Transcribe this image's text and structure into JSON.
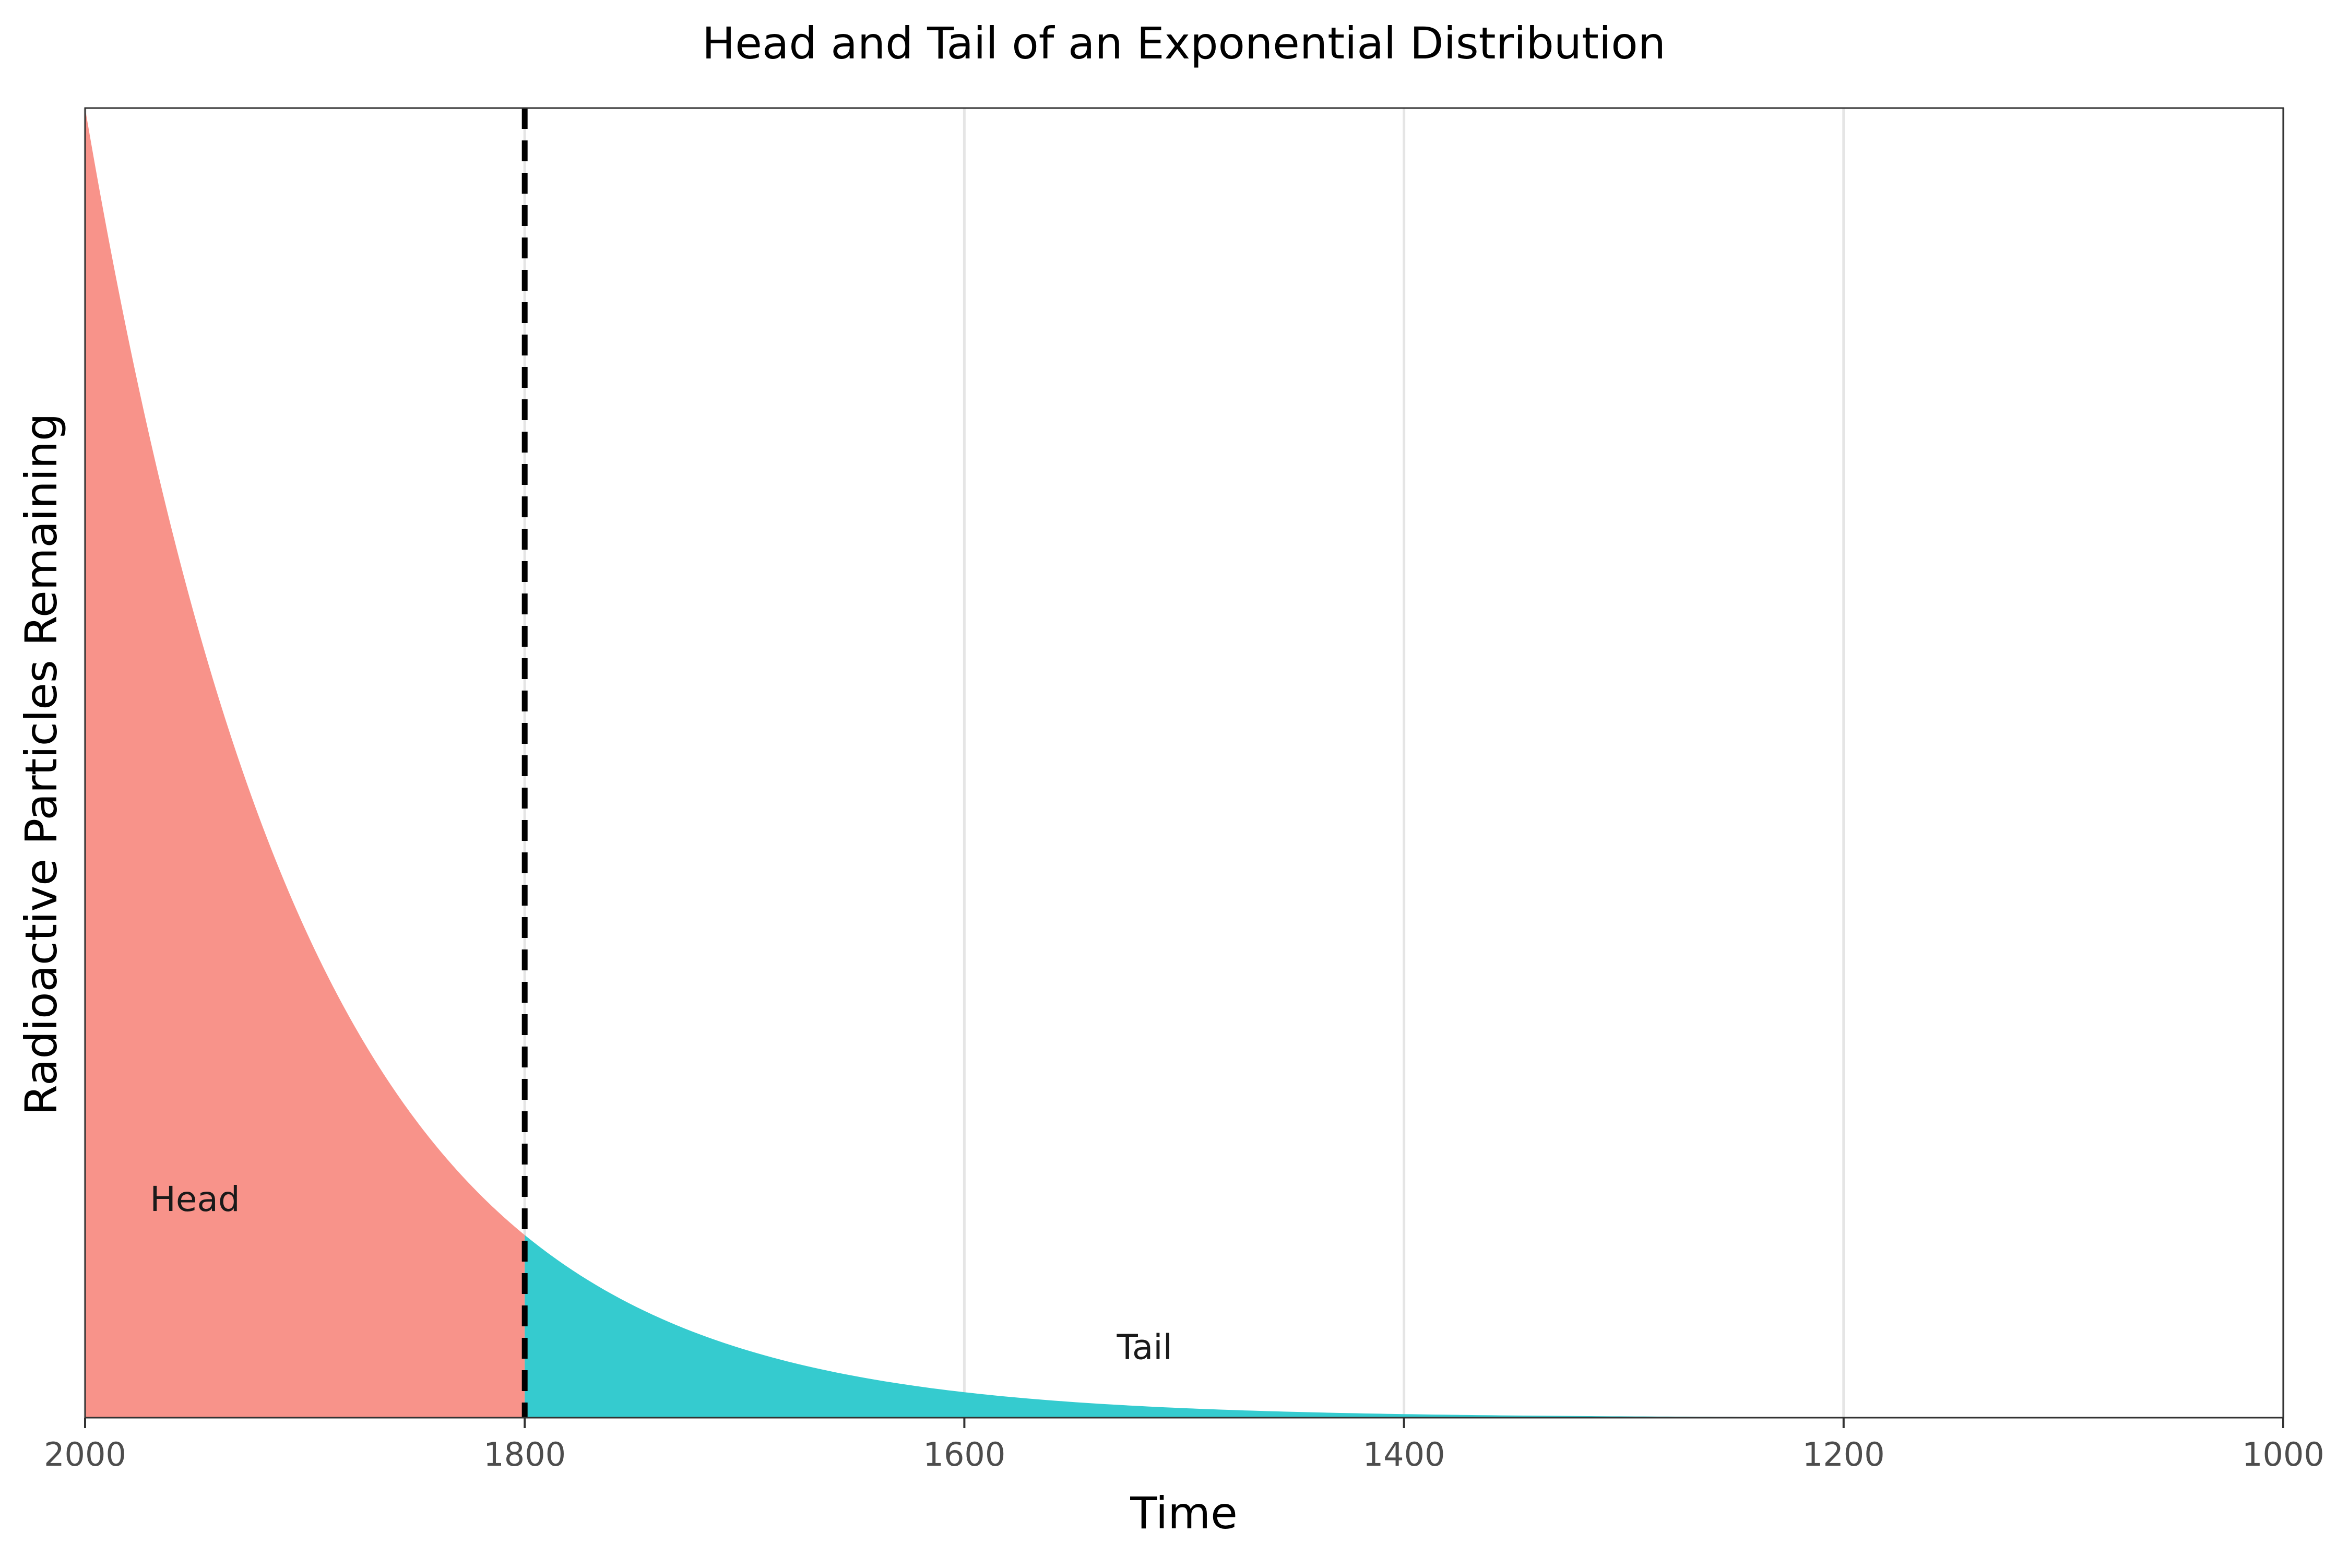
{
  "chart_data": {
    "type": "area",
    "title": "Head and Tail of an Exponential Distribution",
    "xlabel": "Time",
    "ylabel": "Radioactive Particles Remaining",
    "x_axis_reversed": true,
    "xlim": [
      2000,
      1000
    ],
    "x_ticks": [
      2000,
      1800,
      1600,
      1400,
      1200,
      1000
    ],
    "ylim": [
      0,
      1.0
    ],
    "y_ticks_shown": false,
    "grid": {
      "vertical_major": true,
      "horizontal": false
    },
    "curve": {
      "function": "exponential decay",
      "start": {
        "x": 2000,
        "y": 1.0
      },
      "rate_per_year": 0.00985,
      "x": [
        2000,
        1950,
        1900,
        1850,
        1800,
        1750,
        1700,
        1650,
        1600,
        1550,
        1500,
        1450,
        1400,
        1350,
        1300,
        1250,
        1200,
        1150,
        1100,
        1050,
        1000
      ],
      "y": [
        1.0,
        0.611,
        0.373,
        0.228,
        0.139,
        0.085,
        0.052,
        0.032,
        0.019,
        0.012,
        0.007,
        0.004,
        0.003,
        0.002,
        0.001,
        0.0006,
        0.0004,
        0.0002,
        0.0001,
        0.0001,
        0.0001
      ]
    },
    "series": [
      {
        "name": "Head",
        "x_range": [
          2000,
          1800
        ],
        "color": "#F8938A"
      },
      {
        "name": "Tail",
        "x_range": [
          1800,
          1000
        ],
        "color": "#35CBCF"
      }
    ],
    "threshold_line": {
      "x": 1800,
      "style": "dashed",
      "color": "#000000"
    },
    "annotations": [
      {
        "text": "Head",
        "x": 1950,
        "y": 0.165
      },
      {
        "text": "Tail",
        "x": 1518,
        "y": 0.052
      }
    ]
  }
}
